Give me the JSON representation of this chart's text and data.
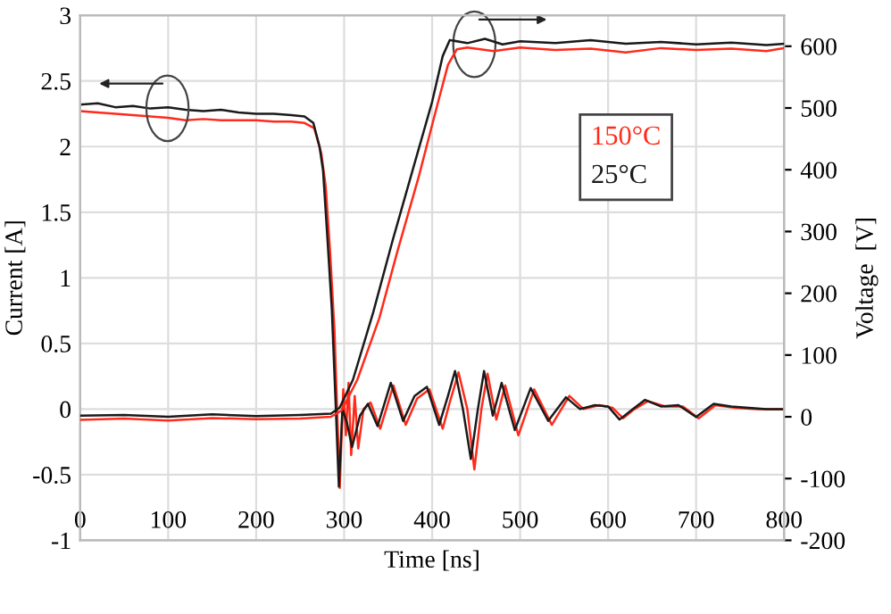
{
  "chart_data": {
    "type": "line",
    "xlabel": "Time [ns]",
    "ylabel": "Current [A]",
    "y2label": "Voltage  [V]",
    "xlim": [
      0,
      800
    ],
    "xticks": [
      0,
      100,
      200,
      300,
      400,
      500,
      600,
      700,
      800
    ],
    "ylim": [
      -1,
      3
    ],
    "yticks": [
      -1,
      -0.5,
      0,
      0.5,
      1,
      1.5,
      2,
      2.5,
      3
    ],
    "y2lim": [
      -200,
      650
    ],
    "y2ticks": [
      -200,
      -100,
      0,
      100,
      200,
      300,
      400,
      500,
      600
    ],
    "grid": true,
    "legend": "right",
    "marker": "none",
    "line_style": "solid",
    "series": [
      {
        "name": "150°C",
        "color": "#ff2a1a",
        "x": [
          0,
          20,
          40,
          60,
          80,
          100,
          120,
          140,
          160,
          180,
          200,
          220,
          240,
          255,
          266,
          274,
          279,
          284,
          289,
          292,
          295,
          299,
          302,
          305,
          308,
          312,
          316,
          322,
          330,
          341,
          356,
          370,
          383,
          397,
          412,
          420,
          430,
          440,
          448,
          456,
          463,
          473,
          483,
          498,
          516,
          536,
          556,
          572,
          590,
          605,
          617,
          630,
          645,
          665,
          685,
          703,
          722,
          745,
          770,
          800
        ],
        "values": [
          2.27,
          2.26,
          2.25,
          2.24,
          2.23,
          2.22,
          2.2,
          2.21,
          2.2,
          2.2,
          2.2,
          2.19,
          2.19,
          2.18,
          2.14,
          1.95,
          1.7,
          1.2,
          0.6,
          0.0,
          -0.6,
          0.15,
          -0.2,
          0.2,
          -0.35,
          0.1,
          -0.3,
          0.0,
          0.05,
          -0.15,
          0.18,
          -0.12,
          0.08,
          0.15,
          -0.15,
          0.05,
          0.28,
          0.0,
          -0.46,
          0.0,
          0.27,
          -0.08,
          0.18,
          -0.2,
          0.15,
          -0.12,
          0.1,
          0.0,
          0.03,
          0.01,
          -0.07,
          0.0,
          0.06,
          0.02,
          0.02,
          -0.07,
          0.03,
          0.01,
          0.0,
          0.0
        ]
      },
      {
        "name": "25°C",
        "color": "#1a1a1a",
        "x": [
          0,
          20,
          40,
          60,
          80,
          100,
          120,
          140,
          160,
          180,
          200,
          220,
          240,
          255,
          265,
          272,
          276,
          281,
          286,
          290,
          294,
          298,
          303,
          309,
          318,
          327,
          338,
          353,
          367,
          380,
          394,
          408,
          418,
          426,
          435,
          444,
          452,
          459,
          469,
          479,
          494,
          512,
          532,
          552,
          568,
          585,
          600,
          613,
          628,
          642,
          660,
          680,
          700,
          720,
          740,
          760,
          780,
          800
        ],
        "values": [
          2.32,
          2.33,
          2.3,
          2.31,
          2.29,
          2.3,
          2.28,
          2.27,
          2.28,
          2.26,
          2.25,
          2.25,
          2.24,
          2.23,
          2.18,
          2.0,
          1.82,
          1.3,
          0.76,
          0.1,
          -0.59,
          0.0,
          -0.1,
          -0.29,
          -0.05,
          0.04,
          -0.13,
          0.2,
          -0.09,
          0.1,
          0.17,
          -0.12,
          0.1,
          0.29,
          0.0,
          -0.38,
          0.0,
          0.29,
          -0.05,
          0.2,
          -0.16,
          0.16,
          -0.09,
          0.09,
          0.0,
          0.03,
          0.02,
          -0.08,
          0.0,
          0.07,
          0.02,
          0.03,
          -0.06,
          0.04,
          0.02,
          0.01,
          0.0,
          0.0
        ]
      },
      {
        "axis": "y2",
        "color": "#ff2a1a",
        "x": [
          0,
          50,
          100,
          150,
          200,
          250,
          285,
          297,
          315,
          340,
          360,
          385,
          405,
          418,
          428,
          440,
          470,
          500,
          540,
          580,
          620,
          660,
          700,
          740,
          780,
          800
        ],
        "values": [
          -5,
          -3,
          -6,
          -2,
          -4,
          -3,
          0,
          10,
          60,
          160,
          265,
          390,
          500,
          570,
          595,
          598,
          592,
          598,
          594,
          596,
          590,
          597,
          594,
          596,
          592,
          597
        ]
      },
      {
        "axis": "y2",
        "color": "#1a1a1a",
        "x": [
          0,
          50,
          100,
          150,
          200,
          250,
          285,
          295,
          310,
          333,
          355,
          378,
          400,
          412,
          420,
          440,
          460,
          480,
          500,
          540,
          580,
          620,
          660,
          700,
          740,
          780,
          800
        ],
        "values": [
          2,
          3,
          0,
          4,
          1,
          3,
          5,
          15,
          60,
          169,
          285,
          400,
          510,
          584,
          610,
          605,
          612,
          603,
          608,
          605,
          610,
          604,
          607,
          603,
          606,
          602,
          604
        ]
      }
    ]
  }
}
